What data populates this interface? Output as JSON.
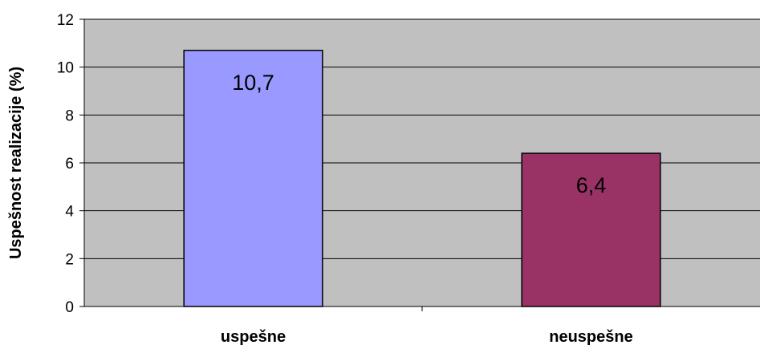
{
  "chart_data": {
    "type": "bar",
    "categories": [
      "uspešne",
      "neuspešne"
    ],
    "values": [
      10.7,
      6.4
    ],
    "data_labels": [
      "10,7",
      "6,4"
    ],
    "bar_colors": [
      "#9999ff",
      "#993366"
    ],
    "plot_background": "#c0c0c0",
    "ylabel": "Uspešnost realizacije (%)",
    "ylim": [
      0,
      12
    ],
    "yticks": [
      0,
      2,
      4,
      6,
      8,
      10,
      12
    ],
    "grid": true,
    "legend": "none"
  }
}
